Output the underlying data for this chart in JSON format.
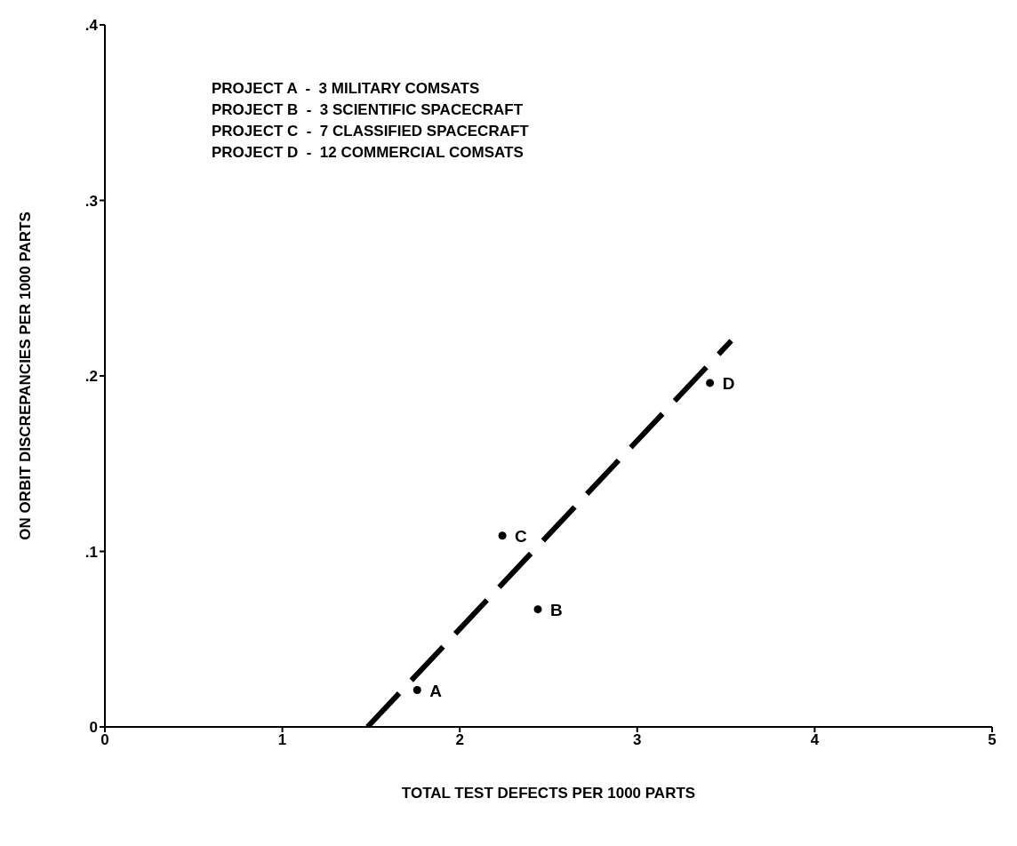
{
  "chart_data": {
    "type": "scatter",
    "xlabel": "TOTAL TEST DEFECTS PER 1000 PARTS",
    "ylabel": "ON ORBIT DISCREPANCIES PER 1000 PARTS",
    "xlim": [
      0,
      5
    ],
    "xticks": [
      0,
      1,
      2,
      3,
      4,
      5
    ],
    "ylim": [
      0,
      0.4
    ],
    "yticks": [
      0,
      {
        "value": 0.1,
        "label": ".1"
      },
      {
        "value": 0.2,
        "label": ".2"
      },
      {
        "value": 0.3,
        "label": ".3"
      },
      {
        "value": 0.4,
        "label": ".4"
      }
    ],
    "grid": false,
    "legend": false,
    "series": [
      {
        "x": [
          1.76,
          2.44,
          2.24,
          3.41
        ],
        "values": [
          0.021,
          0.067,
          0.109,
          0.196
        ],
        "color": "#000000",
        "marker": "circle"
      },
      {
        "type": "line",
        "x": [
          1.48,
          3.53
        ],
        "values": [
          0,
          0.22
        ],
        "color": "#000000",
        "line_style": "dashed",
        "marker": "none"
      }
    ],
    "annotations": [
      {
        "text": "A",
        "x": 1.76,
        "y": 0.021
      },
      {
        "text": "B",
        "x": 2.44,
        "y": 0.067
      },
      {
        "text": "C",
        "x": 2.24,
        "y": 0.109
      },
      {
        "text": "D",
        "x": 3.41,
        "y": 0.196
      },
      "PROJECT A  -  3 MILITARY COMSATS",
      "PROJECT B  -  3 SCIENTIFIC SPACECRAFT",
      "PROJECT C  -  7 CLASSIFIED SPACECRAFT",
      "PROJECT D  -  12 COMMERCIAL COMSATS"
    ]
  }
}
